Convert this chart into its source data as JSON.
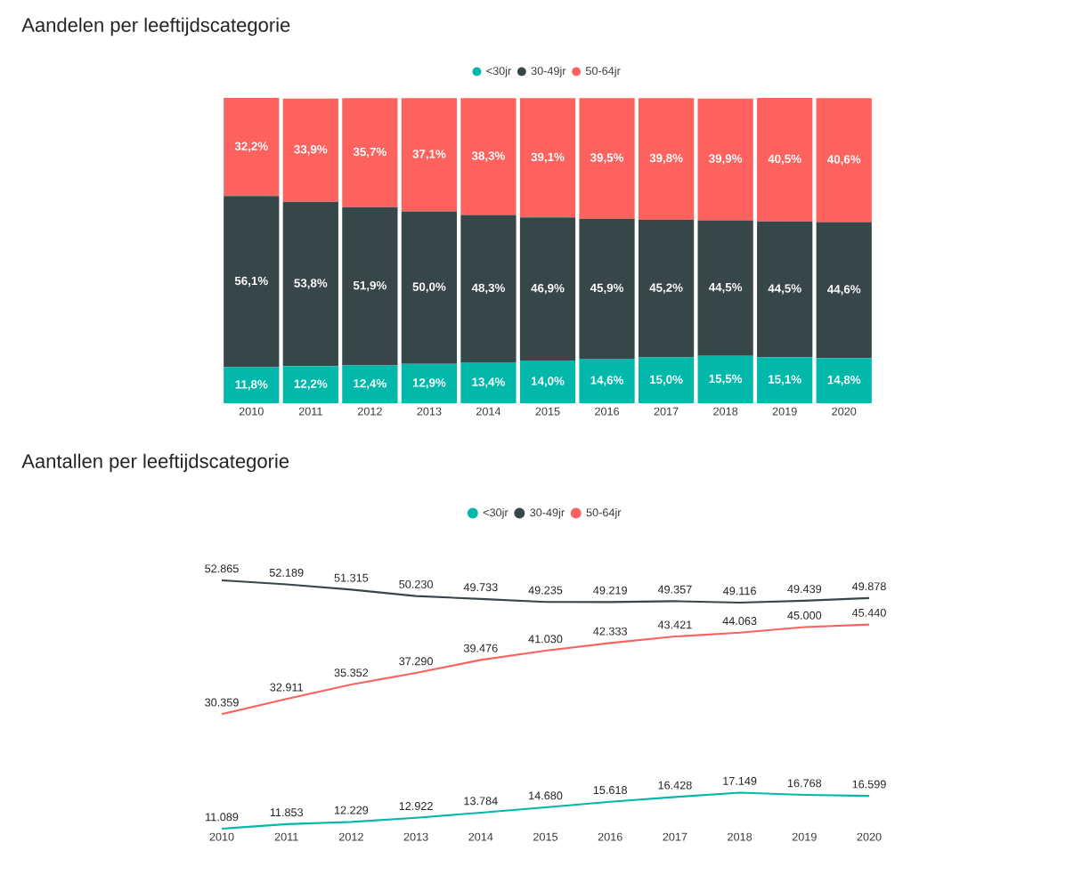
{
  "chart_data": [
    {
      "type": "bar",
      "title": "Aandelen per leeftijdscategorie",
      "stacked": true,
      "legend": "top",
      "tick_labels": "x",
      "categories": [
        "2010",
        "2011",
        "2012",
        "2013",
        "2014",
        "2015",
        "2016",
        "2017",
        "2018",
        "2019",
        "2020"
      ],
      "series": [
        {
          "name": "<30jr",
          "color": "#01b8aa",
          "values": [
            11.8,
            12.2,
            12.4,
            12.9,
            13.4,
            14.0,
            14.6,
            15.0,
            15.5,
            15.1,
            14.8
          ],
          "value_labels": [
            "11,8%",
            "12,2%",
            "12,4%",
            "12,9%",
            "13,4%",
            "14,0%",
            "14,6%",
            "15,0%",
            "15,5%",
            "15,1%",
            "14,8%"
          ]
        },
        {
          "name": "30-49jr",
          "color": "#374649",
          "values": [
            56.1,
            53.8,
            51.9,
            50.0,
            48.3,
            46.9,
            45.9,
            45.2,
            44.5,
            44.5,
            44.6
          ],
          "value_labels": [
            "56,1%",
            "53,8%",
            "51,9%",
            "50,0%",
            "48,3%",
            "46,9%",
            "45,9%",
            "45,2%",
            "44,5%",
            "44,5%",
            "44,6%"
          ]
        },
        {
          "name": "50-64jr",
          "color": "#fd625e",
          "values": [
            32.2,
            33.9,
            35.7,
            37.1,
            38.3,
            39.1,
            39.5,
            39.8,
            39.9,
            40.5,
            40.6
          ],
          "value_labels": [
            "32,2%",
            "33,9%",
            "35,7%",
            "37,1%",
            "38,3%",
            "39,1%",
            "39,5%",
            "39,8%",
            "39,9%",
            "40,5%",
            "40,6%"
          ]
        }
      ]
    },
    {
      "type": "line",
      "title": "Aantallen per leeftijdscategorie",
      "legend": "top",
      "tick_labels": "x",
      "categories": [
        "2010",
        "2011",
        "2012",
        "2013",
        "2014",
        "2015",
        "2016",
        "2017",
        "2018",
        "2019",
        "2020"
      ],
      "series": [
        {
          "name": "<30jr",
          "color": "#01b8aa",
          "values": [
            11089,
            11853,
            12229,
            12922,
            13784,
            14680,
            15618,
            16428,
            17149,
            16768,
            16599
          ],
          "value_labels": [
            "11.089",
            "11.853",
            "12.229",
            "12.922",
            "13.784",
            "14.680",
            "15.618",
            "16.428",
            "17.149",
            "16.768",
            "16.599"
          ]
        },
        {
          "name": "30-49jr",
          "color": "#374649",
          "values": [
            52865,
            52189,
            51315,
            50230,
            49733,
            49235,
            49219,
            49357,
            49116,
            49439,
            49878
          ],
          "value_labels": [
            "52.865",
            "52.189",
            "51.315",
            "50.230",
            "49.733",
            "49.235",
            "49.219",
            "49.357",
            "49.116",
            "49.439",
            "49.878"
          ]
        },
        {
          "name": "50-64jr",
          "color": "#fd625e",
          "values": [
            30359,
            32911,
            35352,
            37290,
            39476,
            41030,
            42333,
            43421,
            44063,
            45000,
            45440
          ],
          "value_labels": [
            "30.359",
            "32.911",
            "35.352",
            "37.290",
            "39.476",
            "41.030",
            "42.333",
            "43.421",
            "44.063",
            "45.000",
            "45.440"
          ]
        }
      ]
    }
  ]
}
